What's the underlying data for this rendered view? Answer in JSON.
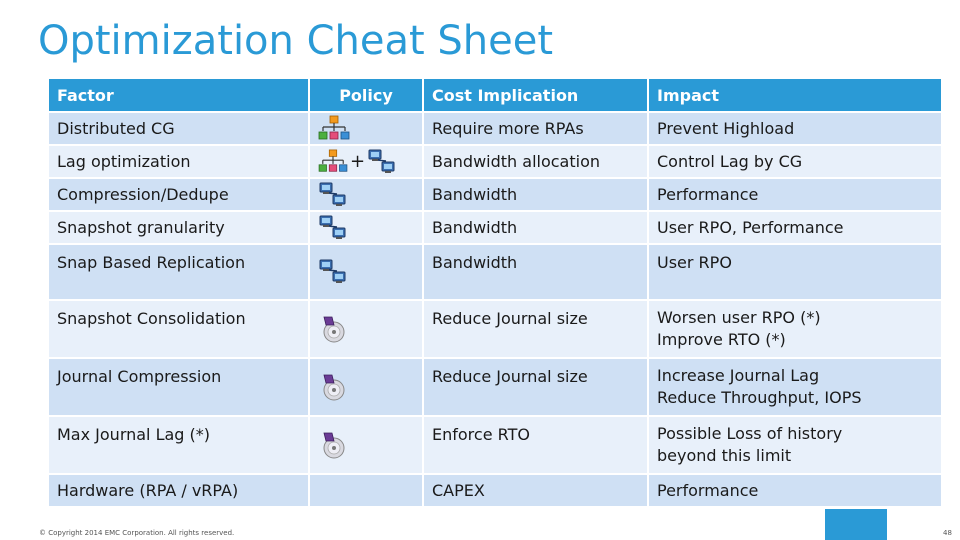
{
  "title": "Optimization Cheat Sheet",
  "table": {
    "headers": [
      "Factor",
      "Policy",
      "Cost Implication",
      "Impact"
    ],
    "rows": [
      {
        "factor": "Distributed CG",
        "policy_icons": [
          "hierarchy-icon"
        ],
        "cost": "Require more RPAs",
        "impact": [
          "Prevent Highload"
        ]
      },
      {
        "factor": "Lag optimization",
        "policy_icons": [
          "hierarchy-icon",
          "plus",
          "network-computers-icon"
        ],
        "cost": "Bandwidth allocation",
        "impact": [
          "Control Lag by CG"
        ]
      },
      {
        "factor": "Compression/Dedupe",
        "policy_icons": [
          "network-computers-icon"
        ],
        "cost": "Bandwidth",
        "impact": [
          "Performance"
        ]
      },
      {
        "factor": "Snapshot granularity",
        "policy_icons": [
          "network-computers-icon"
        ],
        "cost": "Bandwidth",
        "impact": [
          "User RPO, Performance"
        ]
      },
      {
        "factor": "Snap Based Replication",
        "policy_icons": [
          "network-computers-icon"
        ],
        "cost": "Bandwidth",
        "impact": [
          "User RPO"
        ]
      },
      {
        "factor": "Snapshot Consolidation",
        "policy_icons": [
          "disc-icon"
        ],
        "cost": "Reduce Journal size",
        "impact": [
          "Worsen user RPO (*)",
          "Improve RTO (*)"
        ]
      },
      {
        "factor": "Journal Compression",
        "policy_icons": [
          "disc-icon"
        ],
        "cost": "Reduce Journal size",
        "impact": [
          "Increase Journal Lag",
          "Reduce Throughput, IOPS"
        ]
      },
      {
        "factor": "Max Journal Lag (*)",
        "policy_icons": [
          "disc-icon"
        ],
        "cost": "Enforce RTO",
        "impact": [
          "Possible Loss of history",
          "beyond this limit"
        ]
      },
      {
        "factor": "Hardware (RPA / vRPA)",
        "policy_icons": [],
        "cost": "CAPEX",
        "impact": [
          "Performance"
        ]
      }
    ],
    "plus_sign": "+"
  },
  "footer": {
    "copyright": "© Copyright 2014 EMC Corporation. All rights reserved.",
    "page_number": "48"
  },
  "colors": {
    "accent": "#2a9ad6",
    "row_odd": "#cfe0f4",
    "row_even": "#e8f0fa"
  }
}
